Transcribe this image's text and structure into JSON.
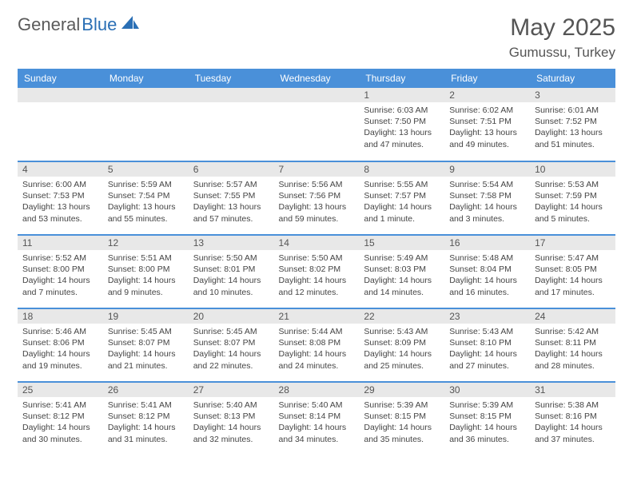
{
  "brand": {
    "part1": "General",
    "part2": "Blue"
  },
  "title": "May 2025",
  "location": "Gumussu, Turkey",
  "colors": {
    "header_bg": "#4a90d9",
    "header_text": "#ffffff",
    "day_bar_bg": "#e8e8e8",
    "rule": "#4a90d9",
    "body_text": "#444444",
    "brand_gray": "#5a5a5a",
    "brand_blue": "#2a6fb5"
  },
  "weekdays": [
    "Sunday",
    "Monday",
    "Tuesday",
    "Wednesday",
    "Thursday",
    "Friday",
    "Saturday"
  ],
  "weeks": [
    [
      {
        "n": "",
        "sr": "",
        "ss": "",
        "dl": ""
      },
      {
        "n": "",
        "sr": "",
        "ss": "",
        "dl": ""
      },
      {
        "n": "",
        "sr": "",
        "ss": "",
        "dl": ""
      },
      {
        "n": "",
        "sr": "",
        "ss": "",
        "dl": ""
      },
      {
        "n": "1",
        "sr": "Sunrise: 6:03 AM",
        "ss": "Sunset: 7:50 PM",
        "dl": "Daylight: 13 hours and 47 minutes."
      },
      {
        "n": "2",
        "sr": "Sunrise: 6:02 AM",
        "ss": "Sunset: 7:51 PM",
        "dl": "Daylight: 13 hours and 49 minutes."
      },
      {
        "n": "3",
        "sr": "Sunrise: 6:01 AM",
        "ss": "Sunset: 7:52 PM",
        "dl": "Daylight: 13 hours and 51 minutes."
      }
    ],
    [
      {
        "n": "4",
        "sr": "Sunrise: 6:00 AM",
        "ss": "Sunset: 7:53 PM",
        "dl": "Daylight: 13 hours and 53 minutes."
      },
      {
        "n": "5",
        "sr": "Sunrise: 5:59 AM",
        "ss": "Sunset: 7:54 PM",
        "dl": "Daylight: 13 hours and 55 minutes."
      },
      {
        "n": "6",
        "sr": "Sunrise: 5:57 AM",
        "ss": "Sunset: 7:55 PM",
        "dl": "Daylight: 13 hours and 57 minutes."
      },
      {
        "n": "7",
        "sr": "Sunrise: 5:56 AM",
        "ss": "Sunset: 7:56 PM",
        "dl": "Daylight: 13 hours and 59 minutes."
      },
      {
        "n": "8",
        "sr": "Sunrise: 5:55 AM",
        "ss": "Sunset: 7:57 PM",
        "dl": "Daylight: 14 hours and 1 minute."
      },
      {
        "n": "9",
        "sr": "Sunrise: 5:54 AM",
        "ss": "Sunset: 7:58 PM",
        "dl": "Daylight: 14 hours and 3 minutes."
      },
      {
        "n": "10",
        "sr": "Sunrise: 5:53 AM",
        "ss": "Sunset: 7:59 PM",
        "dl": "Daylight: 14 hours and 5 minutes."
      }
    ],
    [
      {
        "n": "11",
        "sr": "Sunrise: 5:52 AM",
        "ss": "Sunset: 8:00 PM",
        "dl": "Daylight: 14 hours and 7 minutes."
      },
      {
        "n": "12",
        "sr": "Sunrise: 5:51 AM",
        "ss": "Sunset: 8:00 PM",
        "dl": "Daylight: 14 hours and 9 minutes."
      },
      {
        "n": "13",
        "sr": "Sunrise: 5:50 AM",
        "ss": "Sunset: 8:01 PM",
        "dl": "Daylight: 14 hours and 10 minutes."
      },
      {
        "n": "14",
        "sr": "Sunrise: 5:50 AM",
        "ss": "Sunset: 8:02 PM",
        "dl": "Daylight: 14 hours and 12 minutes."
      },
      {
        "n": "15",
        "sr": "Sunrise: 5:49 AM",
        "ss": "Sunset: 8:03 PM",
        "dl": "Daylight: 14 hours and 14 minutes."
      },
      {
        "n": "16",
        "sr": "Sunrise: 5:48 AM",
        "ss": "Sunset: 8:04 PM",
        "dl": "Daylight: 14 hours and 16 minutes."
      },
      {
        "n": "17",
        "sr": "Sunrise: 5:47 AM",
        "ss": "Sunset: 8:05 PM",
        "dl": "Daylight: 14 hours and 17 minutes."
      }
    ],
    [
      {
        "n": "18",
        "sr": "Sunrise: 5:46 AM",
        "ss": "Sunset: 8:06 PM",
        "dl": "Daylight: 14 hours and 19 minutes."
      },
      {
        "n": "19",
        "sr": "Sunrise: 5:45 AM",
        "ss": "Sunset: 8:07 PM",
        "dl": "Daylight: 14 hours and 21 minutes."
      },
      {
        "n": "20",
        "sr": "Sunrise: 5:45 AM",
        "ss": "Sunset: 8:07 PM",
        "dl": "Daylight: 14 hours and 22 minutes."
      },
      {
        "n": "21",
        "sr": "Sunrise: 5:44 AM",
        "ss": "Sunset: 8:08 PM",
        "dl": "Daylight: 14 hours and 24 minutes."
      },
      {
        "n": "22",
        "sr": "Sunrise: 5:43 AM",
        "ss": "Sunset: 8:09 PM",
        "dl": "Daylight: 14 hours and 25 minutes."
      },
      {
        "n": "23",
        "sr": "Sunrise: 5:43 AM",
        "ss": "Sunset: 8:10 PM",
        "dl": "Daylight: 14 hours and 27 minutes."
      },
      {
        "n": "24",
        "sr": "Sunrise: 5:42 AM",
        "ss": "Sunset: 8:11 PM",
        "dl": "Daylight: 14 hours and 28 minutes."
      }
    ],
    [
      {
        "n": "25",
        "sr": "Sunrise: 5:41 AM",
        "ss": "Sunset: 8:12 PM",
        "dl": "Daylight: 14 hours and 30 minutes."
      },
      {
        "n": "26",
        "sr": "Sunrise: 5:41 AM",
        "ss": "Sunset: 8:12 PM",
        "dl": "Daylight: 14 hours and 31 minutes."
      },
      {
        "n": "27",
        "sr": "Sunrise: 5:40 AM",
        "ss": "Sunset: 8:13 PM",
        "dl": "Daylight: 14 hours and 32 minutes."
      },
      {
        "n": "28",
        "sr": "Sunrise: 5:40 AM",
        "ss": "Sunset: 8:14 PM",
        "dl": "Daylight: 14 hours and 34 minutes."
      },
      {
        "n": "29",
        "sr": "Sunrise: 5:39 AM",
        "ss": "Sunset: 8:15 PM",
        "dl": "Daylight: 14 hours and 35 minutes."
      },
      {
        "n": "30",
        "sr": "Sunrise: 5:39 AM",
        "ss": "Sunset: 8:15 PM",
        "dl": "Daylight: 14 hours and 36 minutes."
      },
      {
        "n": "31",
        "sr": "Sunrise: 5:38 AM",
        "ss": "Sunset: 8:16 PM",
        "dl": "Daylight: 14 hours and 37 minutes."
      }
    ]
  ]
}
